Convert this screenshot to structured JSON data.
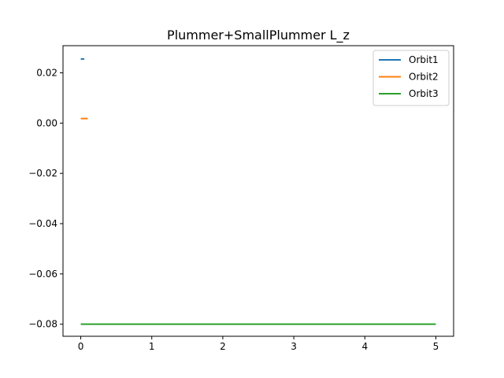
{
  "chart_data": {
    "type": "line",
    "title": "Plummer+SmallPlummer L_z",
    "xlabel": "",
    "ylabel": "",
    "xlim": [
      -0.25,
      5.25
    ],
    "ylim": [
      -0.0848,
      0.0308
    ],
    "x_ticks": [
      0,
      1,
      2,
      3,
      4,
      5
    ],
    "x_tick_labels": [
      "0",
      "1",
      "2",
      "3",
      "4",
      "5"
    ],
    "y_ticks": [
      0.02,
      0.0,
      -0.02,
      -0.04,
      -0.06,
      -0.08
    ],
    "y_tick_labels": [
      "0.02",
      "0.00",
      "−0.02",
      "−0.04",
      "−0.06",
      "−0.08"
    ],
    "grid": false,
    "legend_position": "top-right",
    "series": [
      {
        "name": "Orbit1",
        "color": "#1f77b4",
        "x": [
          0.0,
          0.05
        ],
        "y": [
          0.0255,
          0.0255
        ]
      },
      {
        "name": "Orbit2",
        "color": "#ff7f0e",
        "x": [
          0.0,
          0.1
        ],
        "y": [
          0.0018,
          0.0018
        ]
      },
      {
        "name": "Orbit3",
        "color": "#2ca02c",
        "x": [
          0.0,
          5.0
        ],
        "y": [
          -0.08,
          -0.08
        ]
      }
    ]
  }
}
